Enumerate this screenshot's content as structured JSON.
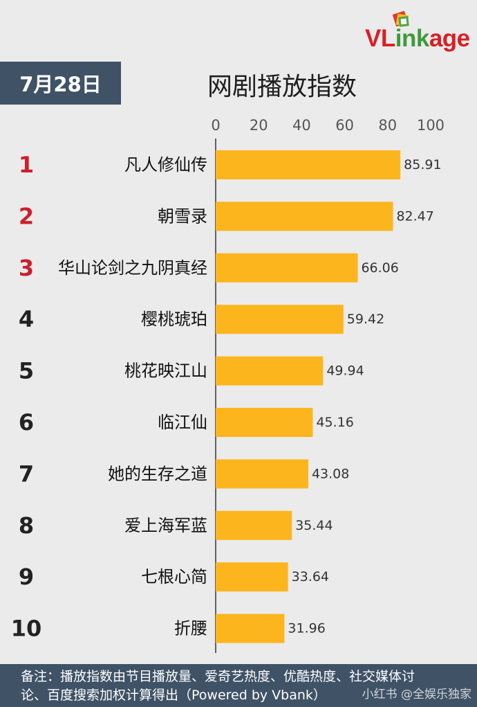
{
  "header": {
    "date": "7月28日",
    "title": "网剧播放指数",
    "logo": {
      "red_text": "VL",
      "green_text": "ink",
      "red_text_2": "age"
    }
  },
  "chart_data": {
    "type": "bar",
    "orientation": "horizontal",
    "title": "网剧播放指数",
    "ranks": [
      "1",
      "2",
      "3",
      "4",
      "5",
      "6",
      "7",
      "8",
      "9",
      "10"
    ],
    "categories": [
      "凡人修仙传",
      "朝雪录",
      "华山论剑之九阴真经",
      "樱桃琥珀",
      "桃花映江山",
      "临江仙",
      "她的生存之道",
      "爱上海军蓝",
      "七根心简",
      "折腰"
    ],
    "values": [
      85.91,
      82.47,
      66.06,
      59.42,
      49.94,
      45.16,
      43.08,
      35.44,
      33.64,
      31.96
    ],
    "value_labels": [
      "85.91",
      "82.47",
      "66.06",
      "59.42",
      "49.94",
      "45.16",
      "43.08",
      "35.44",
      "33.64",
      "31.96"
    ],
    "xlim": [
      0,
      100
    ],
    "x_ticks": [
      "0",
      "20",
      "40",
      "60",
      "80",
      "100"
    ],
    "x_tick_values": [
      0,
      20,
      40,
      60,
      80,
      100
    ],
    "grid": false,
    "axis_position": "top",
    "bar_color": "#fdb51e",
    "top_rank_color": "#cc1f2d",
    "rank_color": "#222222"
  },
  "footer": {
    "note_line1": "备注：播放指数由节目播放量、爱奇艺热度、优酷热度、社交媒体讨",
    "note_line2": "论、百度搜索加权计算得出（Powered by Vbank）"
  },
  "watermark": "小红书 @全娱乐独家"
}
